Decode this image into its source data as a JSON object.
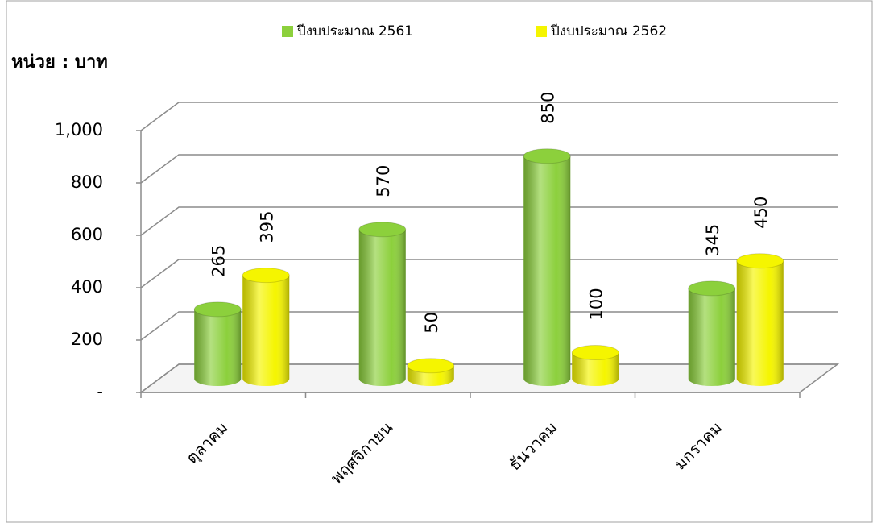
{
  "chart_data": {
    "type": "bar",
    "y_label": "หน่วย : บาท",
    "categories": [
      "ตุลาคม",
      "พฤศจิกายน",
      "ธันวาคม",
      "มกราคม"
    ],
    "series": [
      {
        "name": "ปีงบประมาณ 2561",
        "color": "#8cd03c",
        "values": [
          265,
          570,
          850,
          345
        ]
      },
      {
        "name": "ปีงบประมาณ 2562",
        "color": "#f5f500",
        "values": [
          395,
          50,
          100,
          450
        ]
      }
    ],
    "ylim": [
      0,
      1000
    ],
    "yticks": [
      {
        "value": 0,
        "label": "-"
      },
      200,
      400,
      600,
      800,
      {
        "value": 1000,
        "label": "1,000"
      }
    ],
    "grid": true,
    "legend": "top"
  }
}
